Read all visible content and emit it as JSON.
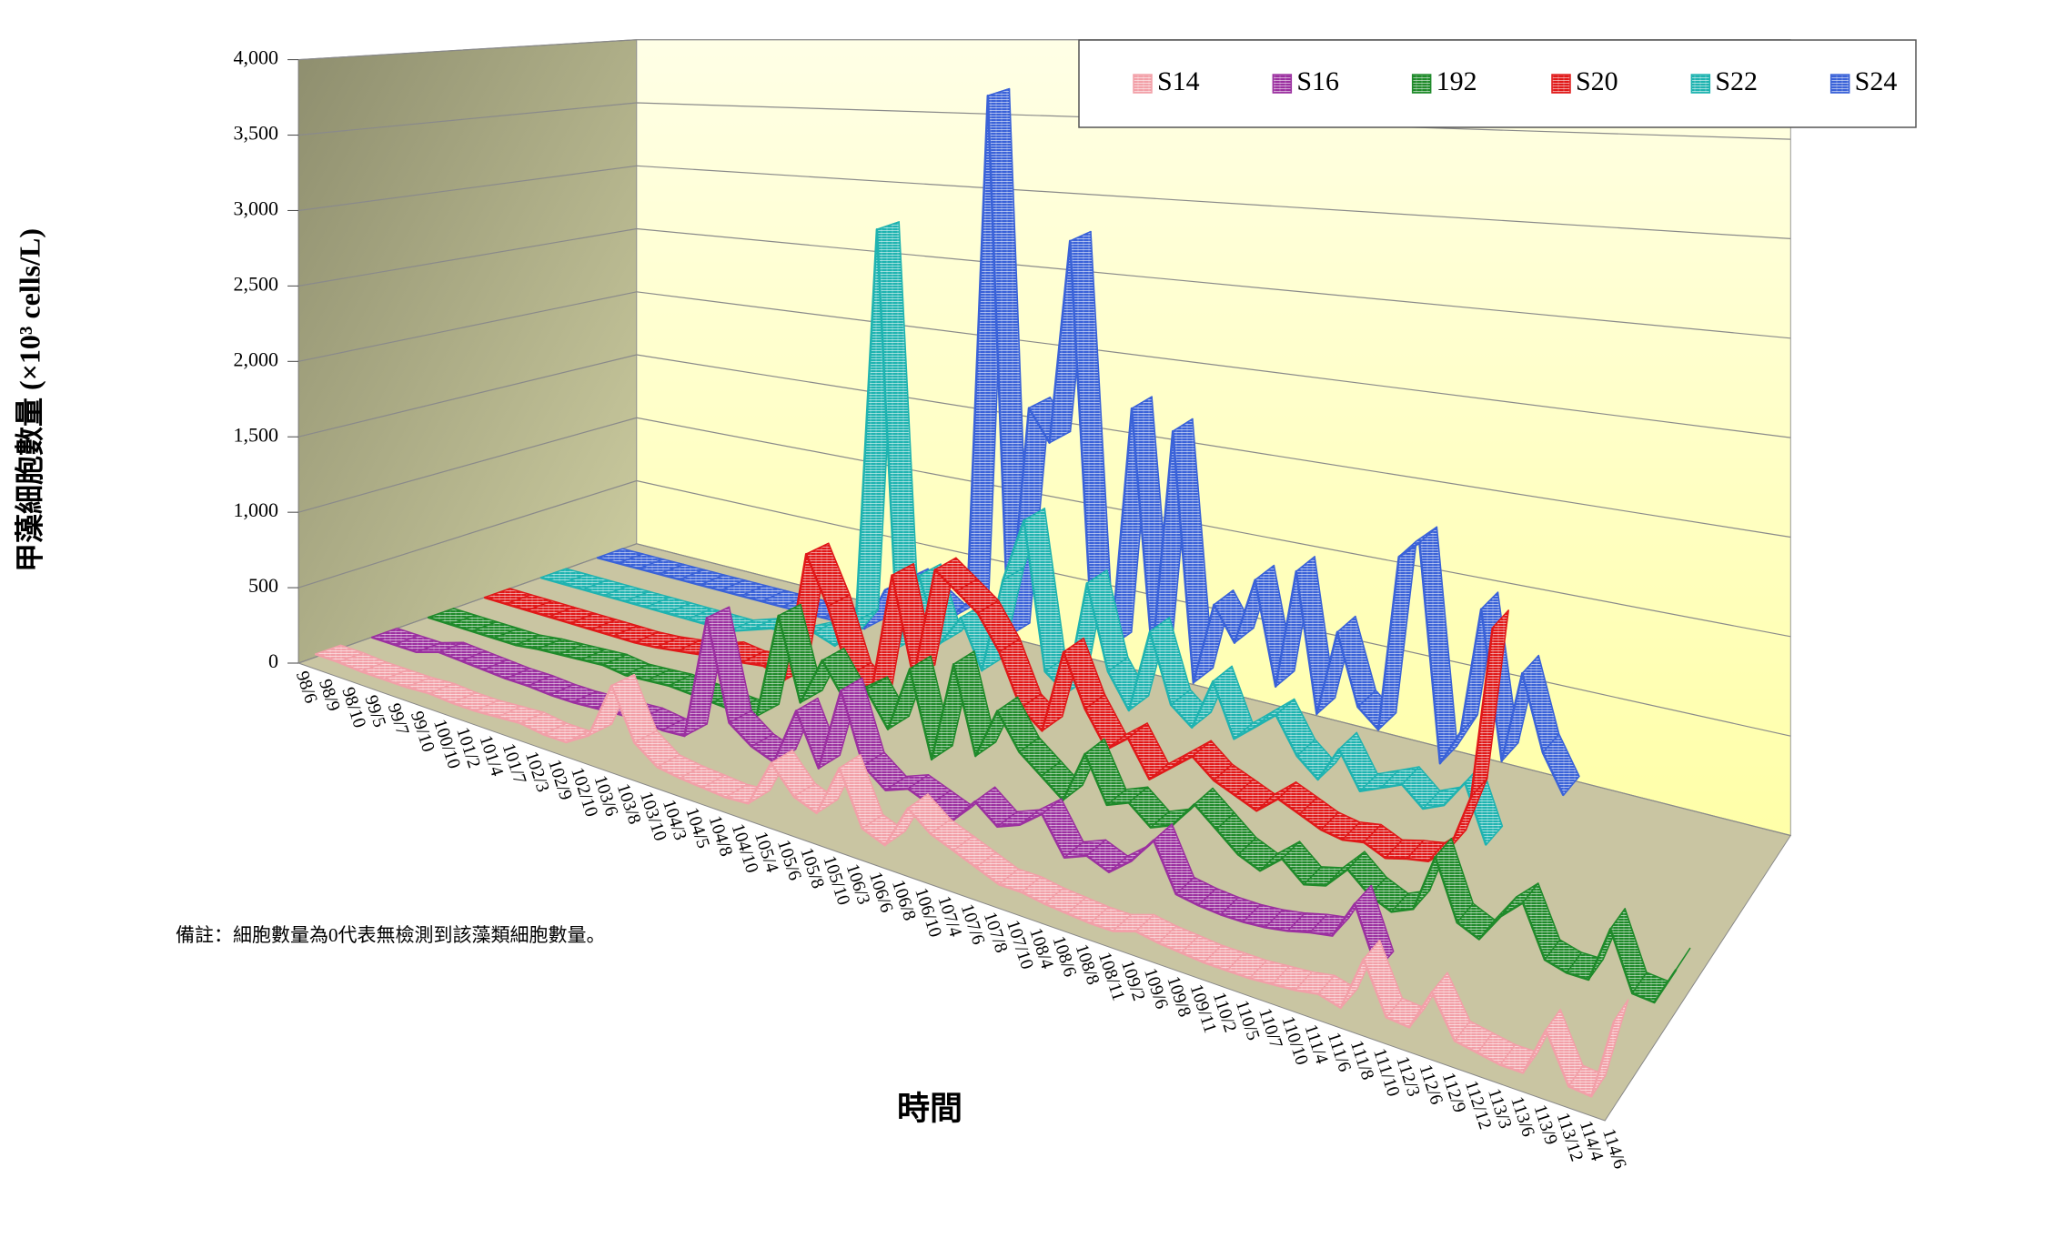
{
  "chart_data": {
    "type": "line3d",
    "y_axis_label": "甲藻細胞數量 (×10³ cells/L)",
    "x_axis_label": "時間",
    "note": "備註：細胞數量為0代表無檢測到該藻類細胞數量。",
    "legend_position": "top-right",
    "ylim": [
      0,
      4000
    ],
    "yticks": [
      0,
      500,
      {
        "value": 1000,
        "label": "1,000"
      },
      {
        "value": 1500,
        "label": "1,500"
      },
      {
        "value": 2000,
        "label": "2,000"
      },
      {
        "value": 2500,
        "label": "2,500"
      },
      {
        "value": 3000,
        "label": "3,000"
      },
      {
        "value": 3500,
        "label": "3,500"
      },
      {
        "value": 4000,
        "label": "4,000"
      }
    ],
    "grid": true,
    "categories": [
      "98/6",
      "98/9",
      "98/10",
      "99/5",
      "99/7",
      "99/10",
      "100/10",
      "101/2",
      "101/4",
      "101/7",
      "102/3",
      "102/9",
      "102/10",
      "103/6",
      "103/8",
      "103/10",
      "104/3",
      "104/5",
      "104/8",
      "104/10",
      "105/4",
      "105/6",
      "105/8",
      "105/10",
      "106/3",
      "106/6",
      "106/8",
      "106/10",
      "107/4",
      "107/6",
      "107/8",
      "107/10",
      "108/4",
      "108/6",
      "108/8",
      "108/11",
      "109/2",
      "109/6",
      "109/8",
      "109/11",
      "110/2",
      "110/5",
      "110/7",
      "110/10",
      "111/4",
      "111/6",
      "111/8",
      "111/10",
      "112/3",
      "112/6",
      "112/9",
      "112/12",
      "113/3",
      "113/6",
      "113/9",
      "113/12",
      "114/4",
      "114/6"
    ],
    "series": [
      {
        "name": "S14",
        "color": "#f2a0a8",
        "values": [
          20,
          20,
          10,
          10,
          10,
          20,
          10,
          10,
          20,
          30,
          10,
          10,
          100,
          450,
          150,
          50,
          30,
          20,
          10,
          20,
          300,
          150,
          100,
          400,
          100,
          50,
          300,
          200,
          150,
          100,
          50,
          50,
          30,
          20,
          10,
          10,
          50,
          30,
          20,
          10,
          10,
          10,
          20,
          30,
          50,
          20,
          300,
          50,
          40,
          250,
          50,
          30,
          10,
          10,
          250,
          20,
          10,
          400
        ]
      },
      {
        "name": "S16",
        "color": "#9b30a0",
        "values": [
          0,
          0,
          0,
          50,
          40,
          30,
          20,
          20,
          10,
          10,
          20,
          30,
          40,
          20,
          30,
          800,
          200,
          100,
          50,
          400,
          100,
          600,
          200,
          100,
          150,
          100,
          50,
          200,
          100,
          150,
          250,
          50,
          100,
          50,
          150,
          300,
          50,
          30,
          20,
          20,
          30,
          50,
          80,
          100,
          300,
          0,
          null,
          null,
          null,
          null,
          null,
          null,
          null,
          null,
          null,
          null,
          null,
          null
        ]
      },
      {
        "name": "192",
        "color": "#1f8a2a",
        "values": [
          0,
          0,
          0,
          0,
          0,
          20,
          30,
          40,
          50,
          30,
          40,
          50,
          40,
          30,
          20,
          30,
          700,
          200,
          500,
          300,
          400,
          200,
          600,
          100,
          700,
          200,
          500,
          300,
          200,
          100,
          400,
          150,
          200,
          100,
          150,
          300,
          200,
          100,
          50,
          150,
          50,
          80,
          200,
          100,
          50,
          100,
          400,
          100,
          50,
          200,
          300,
          50,
          20,
          20,
          300,
          20,
          10,
          200
        ]
      },
      {
        "name": "S20",
        "color": "#e01818",
        "values": [
          0,
          0,
          0,
          0,
          0,
          0,
          0,
          0,
          10,
          30,
          50,
          100,
          80,
          100,
          50,
          900,
          600,
          200,
          100,
          900,
          300,
          1000,
          900,
          800,
          600,
          300,
          200,
          700,
          400,
          200,
          300,
          100,
          200,
          300,
          200,
          150,
          100,
          200,
          150,
          100,
          80,
          100,
          50,
          80,
          100,
          200,
          500,
          1400,
          null,
          null,
          null,
          null,
          null,
          null,
          null,
          null,
          null,
          null
        ]
      },
      {
        "name": "S22",
        "color": "#1fb3b0",
        "values": [
          0,
          0,
          0,
          0,
          0,
          0,
          0,
          0,
          0,
          0,
          50,
          100,
          80,
          150,
          100,
          300,
          2900,
          200,
          700,
          300,
          500,
          200,
          800,
          1200,
          300,
          200,
          900,
          400,
          200,
          700,
          300,
          200,
          500,
          200,
          300,
          400,
          200,
          100,
          300,
          100,
          150,
          200,
          100,
          150,
          300,
          0,
          null,
          null,
          null,
          null,
          null,
          null,
          null,
          null,
          null,
          null,
          null,
          null
        ]
      },
      {
        "name": "S24",
        "color": "#3a62d8",
        "values": [
          0,
          0,
          0,
          0,
          0,
          0,
          0,
          0,
          0,
          0,
          0,
          0,
          0,
          0,
          300,
          400,
          300,
          200,
          350,
          3700,
          200,
          1700,
          1500,
          2800,
          500,
          300,
          1800,
          300,
          1700,
          200,
          700,
          500,
          900,
          300,
          1000,
          200,
          700,
          300,
          200,
          1200,
          1300,
          100,
          300,
          1000,
          200,
          700,
          300,
          100,
          null,
          null,
          null,
          null,
          null,
          null,
          null,
          null,
          null,
          null
        ]
      }
    ]
  }
}
